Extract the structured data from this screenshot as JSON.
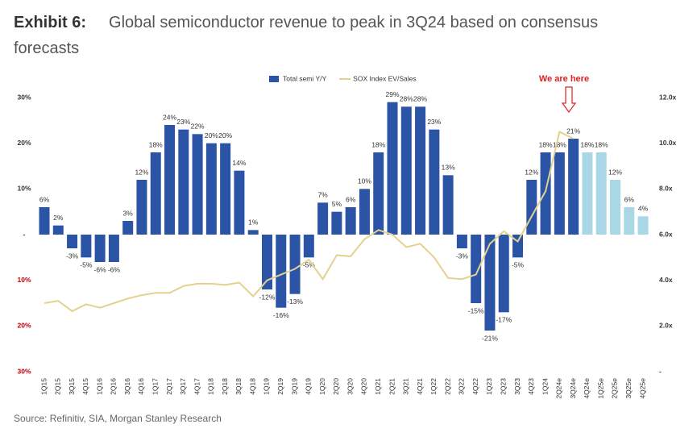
{
  "chart_data": {
    "type": "bar",
    "title_label": "Exhibit 6:",
    "title": "Global semiconductor revenue to peak in 3Q24 based on consensus forecasts",
    "source": "Source: Refinitiv, SIA, Morgan Stanley Research",
    "annotation": "We are here",
    "categories": [
      "1Q15",
      "2Q15",
      "3Q15",
      "4Q15",
      "1Q16",
      "2Q16",
      "3Q16",
      "4Q16",
      "1Q17",
      "2Q17",
      "3Q17",
      "4Q17",
      "1Q18",
      "2Q18",
      "3Q18",
      "4Q18",
      "1Q19",
      "2Q19",
      "3Q19",
      "4Q19",
      "1Q20",
      "2Q20",
      "3Q20",
      "4Q20",
      "1Q21",
      "2Q21",
      "3Q21",
      "4Q21",
      "1Q22",
      "2Q22",
      "3Q22",
      "4Q22",
      "1Q23",
      "2Q23",
      "3Q23",
      "4Q23",
      "1Q24",
      "2Q24e",
      "3Q24e",
      "4Q24e",
      "1Q25e",
      "2Q25e",
      "3Q25e",
      "4Q25e"
    ],
    "series": [
      {
        "name": "Total semi Y/Y",
        "type": "bar",
        "color": "#2c54a6",
        "colors": [
          "#2c54a6",
          "#2c54a6",
          "#2c54a6",
          "#2c54a6",
          "#2c54a6",
          "#2c54a6",
          "#2c54a6",
          "#2c54a6",
          "#2c54a6",
          "#2c54a6",
          "#2c54a6",
          "#2c54a6",
          "#2c54a6",
          "#2c54a6",
          "#2c54a6",
          "#2c54a6",
          "#2c54a6",
          "#2c54a6",
          "#2c54a6",
          "#2c54a6",
          "#2c54a6",
          "#2c54a6",
          "#2c54a6",
          "#2c54a6",
          "#2c54a6",
          "#2c54a6",
          "#2c54a6",
          "#2c54a6",
          "#2c54a6",
          "#2c54a6",
          "#2c54a6",
          "#2c54a6",
          "#2c54a6",
          "#2c54a6",
          "#2c54a6",
          "#2c54a6",
          "#2c54a6",
          "#2c54a6",
          "#2c54a6",
          "#a9d7e6",
          "#a9d7e6",
          "#a9d7e6",
          "#a9d7e6",
          "#a9d7e6"
        ],
        "values": [
          6,
          2,
          -3,
          -5,
          -6,
          -6,
          3,
          12,
          18,
          24,
          23,
          22,
          20,
          20,
          14,
          1,
          -12,
          -16,
          -13,
          -5,
          7,
          5,
          6,
          10,
          18,
          29,
          28,
          28,
          23,
          13,
          -3,
          -15,
          -21,
          -17,
          -5,
          12,
          18,
          18,
          21,
          18,
          18,
          12,
          6,
          4
        ],
        "value_labels": [
          "6%",
          "2%",
          "-3%",
          "-5%",
          "-6%",
          "-6%",
          "3%",
          "12%",
          "18%",
          "24%",
          "23%",
          "22%",
          "20%",
          "20%",
          "14%",
          "1%",
          "-12%",
          "-16%",
          "-13%",
          "-5%",
          "7%",
          "5%",
          "6%",
          "10%",
          "18%",
          "29%",
          "28%",
          "28%",
          "23%",
          "13%",
          "-3%",
          "-15%",
          "-21%",
          "-17%",
          "-5%",
          "12%",
          "18%",
          "18%",
          "21%",
          "18%",
          "18%",
          "12%",
          "6%",
          "4%"
        ]
      },
      {
        "name": "SOX Index EV/Sales",
        "type": "line",
        "axis": "y2",
        "color": "#e3d28e",
        "values": [
          3.0,
          3.1,
          2.65,
          2.95,
          2.8,
          3.0,
          3.2,
          3.35,
          3.45,
          3.45,
          3.75,
          3.85,
          3.85,
          3.8,
          3.9,
          3.3,
          4.0,
          4.25,
          4.5,
          4.9,
          4.05,
          5.1,
          5.05,
          5.8,
          6.2,
          6.0,
          5.45,
          5.6,
          5.0,
          4.1,
          4.05,
          4.25,
          5.6,
          6.15,
          5.7,
          6.8,
          7.9,
          10.5,
          10.2,
          null,
          null,
          null,
          null,
          null
        ]
      }
    ],
    "ylim": [
      -30,
      30
    ],
    "yticks": [
      {
        "value": 30,
        "label": "30%"
      },
      {
        "value": 20,
        "label": "20%"
      },
      {
        "value": 10,
        "label": "10%"
      },
      {
        "value": 0,
        "label": "-"
      },
      {
        "value": -10,
        "label": "10%"
      },
      {
        "value": -20,
        "label": "20%"
      },
      {
        "value": -30,
        "label": "30%"
      }
    ],
    "y2lim": [
      0,
      12
    ],
    "y2ticks": [
      {
        "value": 12,
        "label": "12.0x"
      },
      {
        "value": 10,
        "label": "10.0x"
      },
      {
        "value": 8,
        "label": "8.0x"
      },
      {
        "value": 6,
        "label": "6.0x"
      },
      {
        "value": 4,
        "label": "4.0x"
      },
      {
        "value": 2,
        "label": "2.0x"
      },
      {
        "value": 0,
        "label": "-"
      }
    ],
    "legend": "top"
  }
}
